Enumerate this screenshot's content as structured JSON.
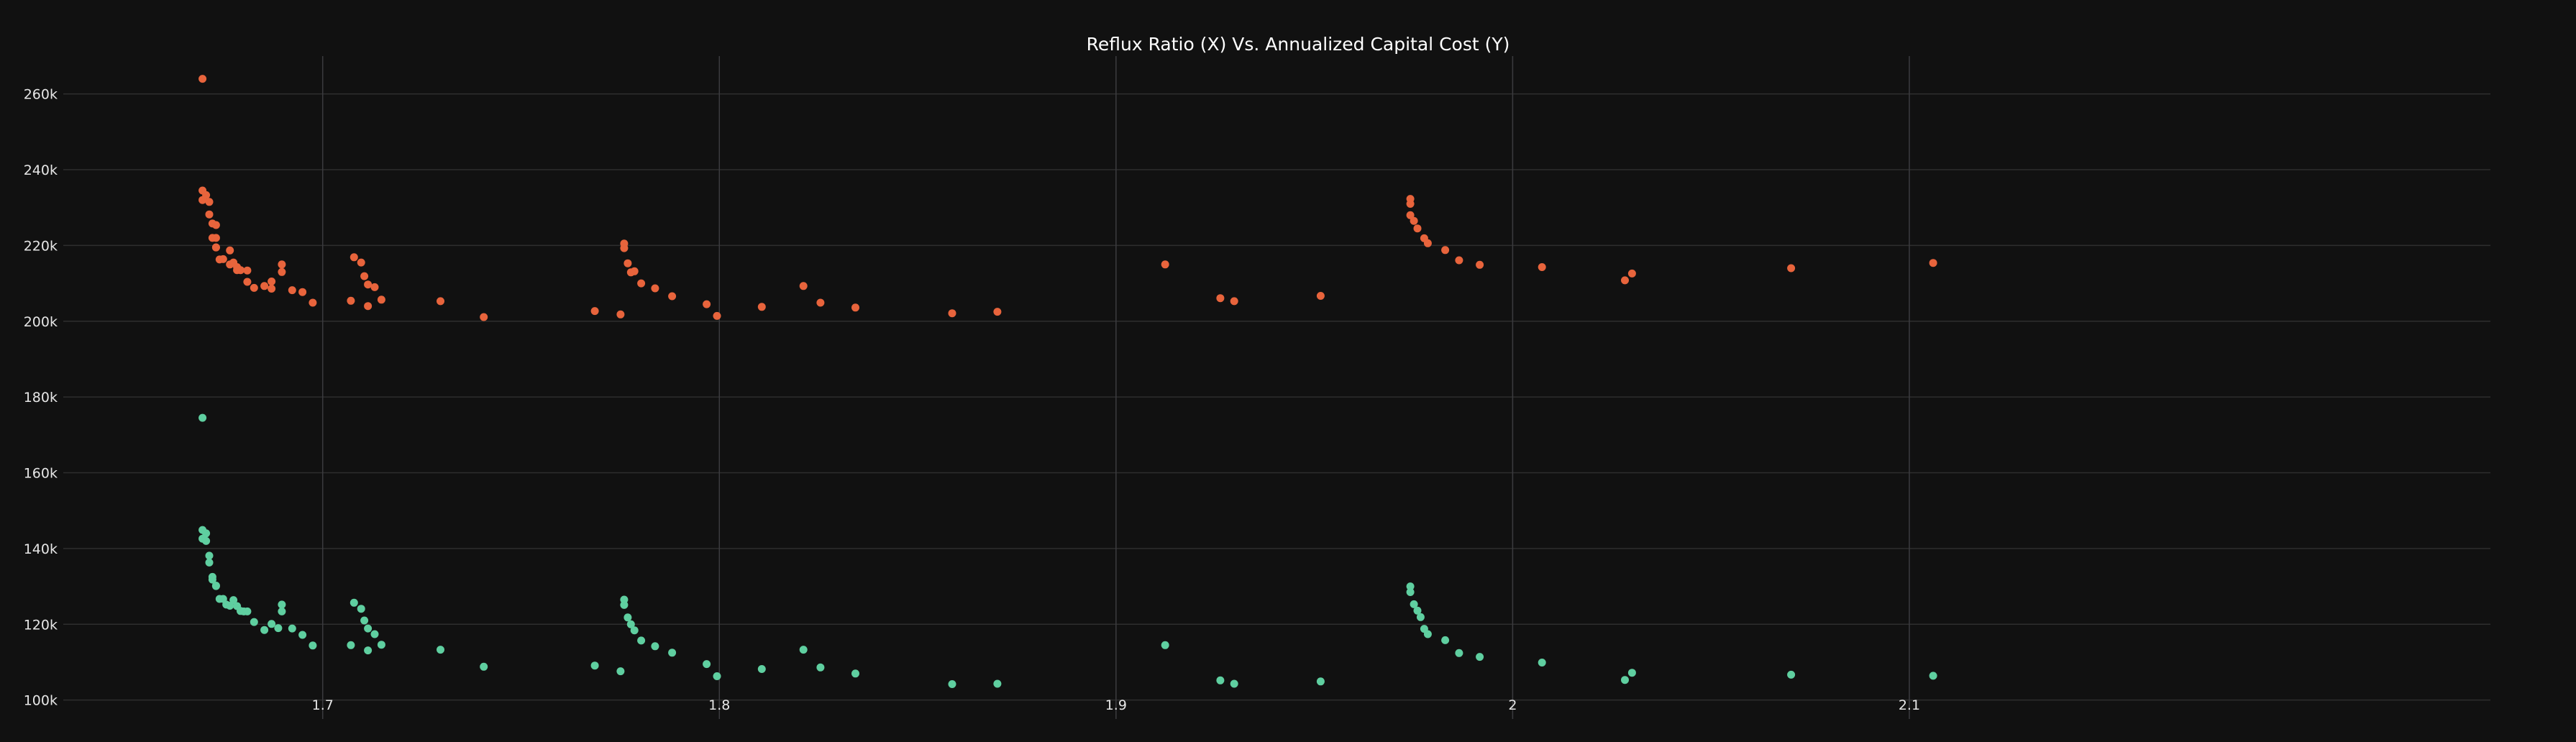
{
  "chart_data": {
    "type": "scatter",
    "title": "Reflux Ratio (X) Vs. Annualized Capital Cost (Y)",
    "xlabel": "",
    "ylabel": "",
    "xlim": [
      1.6346,
      2.2465
    ],
    "ylim": [
      95000,
      270000
    ],
    "x_ticks": [
      1.7,
      1.8,
      1.9,
      2.0,
      2.1
    ],
    "x_tick_labels": [
      "1.7",
      "1.8",
      "1.9",
      "2",
      "2.1"
    ],
    "y_ticks": [
      100000,
      120000,
      140000,
      160000,
      180000,
      200000,
      220000,
      240000,
      260000
    ],
    "y_tick_labels": [
      "100k",
      "120k",
      "140k",
      "160k",
      "180k",
      "200k",
      "220k",
      "240k",
      "260k"
    ],
    "grid": true,
    "legend": "none",
    "series": [
      {
        "color": "#e8643c",
        "x": [
          1.6697,
          1.6697,
          1.6706,
          1.6697,
          1.6714,
          1.6714,
          1.6722,
          1.6731,
          1.6722,
          1.6731,
          1.6731,
          1.6731,
          1.674,
          1.6749,
          1.6766,
          1.6766,
          1.6775,
          1.6784,
          1.6793,
          1.6784,
          1.681,
          1.681,
          1.6827,
          1.6853,
          1.6871,
          1.6871,
          1.6897,
          1.6897,
          1.6923,
          1.6949,
          1.6975,
          1.7071,
          1.7079,
          1.7097,
          1.7105,
          1.7114,
          1.7114,
          1.7131,
          1.7148,
          1.7297,
          1.7406,
          1.7686,
          1.7751,
          1.776,
          1.776,
          1.7769,
          1.7777,
          1.7786,
          1.7803,
          1.7838,
          1.7881,
          1.7968,
          1.7994,
          1.8107,
          1.8212,
          1.8255,
          1.8343,
          1.8587,
          1.8701,
          1.9124,
          1.9263,
          1.9298,
          1.9516,
          1.9742,
          1.9742,
          1.9742,
          1.9751,
          1.976,
          1.9777,
          1.9786,
          1.983,
          1.9865,
          1.9917,
          2.0074,
          2.0283,
          2.0301,
          2.0702,
          2.106
        ],
        "y": [
          264000,
          234500,
          233300,
          232000,
          231500,
          228200,
          225800,
          225400,
          222000,
          222000,
          219500,
          219500,
          216300,
          216400,
          218700,
          215000,
          215500,
          214300,
          213500,
          213500,
          213400,
          210400,
          208800,
          209300,
          210500,
          208600,
          215000,
          213000,
          208200,
          207700,
          204900,
          205400,
          216900,
          215500,
          211900,
          209700,
          204000,
          209000,
          205700,
          205300,
          201100,
          202700,
          201800,
          220500,
          219300,
          215300,
          212900,
          213200,
          210000,
          208700,
          206600,
          204500,
          201400,
          203800,
          209300,
          204900,
          203600,
          202100,
          202500,
          215000,
          206100,
          205300,
          206700,
          232300,
          231000,
          228000,
          226500,
          224500,
          221900,
          220600,
          218800,
          216100,
          214900,
          214300,
          210800,
          212600,
          214000,
          215400
        ]
      },
      {
        "color": "#5fcfa0",
        "x": [
          1.6697,
          1.6697,
          1.6697,
          1.6706,
          1.6706,
          1.6714,
          1.6714,
          1.6722,
          1.6722,
          1.6731,
          1.6731,
          1.674,
          1.6749,
          1.6757,
          1.6766,
          1.6775,
          1.6784,
          1.6793,
          1.6801,
          1.681,
          1.6827,
          1.6853,
          1.6871,
          1.6888,
          1.6897,
          1.6897,
          1.6923,
          1.6949,
          1.6975,
          1.7071,
          1.7079,
          1.7097,
          1.7105,
          1.7114,
          1.7114,
          1.7131,
          1.7148,
          1.7297,
          1.7406,
          1.7686,
          1.7751,
          1.776,
          1.776,
          1.7769,
          1.7777,
          1.7786,
          1.7803,
          1.7838,
          1.7881,
          1.7968,
          1.7994,
          1.8107,
          1.8212,
          1.8255,
          1.8343,
          1.8587,
          1.8701,
          1.9124,
          1.9263,
          1.9298,
          1.9516,
          1.9742,
          1.9742,
          1.9751,
          1.976,
          1.9768,
          1.9777,
          1.9786,
          1.983,
          1.9865,
          1.9917,
          2.0074,
          2.0283,
          2.0301,
          2.0702,
          2.106
        ],
        "y": [
          174500,
          144900,
          142600,
          144000,
          142000,
          138100,
          136300,
          132500,
          131800,
          130200,
          130100,
          126700,
          126700,
          125200,
          124900,
          126400,
          124800,
          123500,
          123400,
          123400,
          120600,
          118500,
          120100,
          119000,
          125200,
          123400,
          118900,
          117200,
          114400,
          114500,
          125700,
          124100,
          121000,
          118900,
          113100,
          117400,
          114600,
          113300,
          108800,
          109100,
          107600,
          126500,
          125100,
          121800,
          120000,
          118400,
          115700,
          114200,
          112500,
          109500,
          106300,
          108200,
          113300,
          108600,
          107000,
          104200,
          104300,
          114500,
          105200,
          104300,
          104900,
          130000,
          128500,
          125300,
          123600,
          121900,
          118800,
          117400,
          115800,
          112400,
          111400,
          109900,
          105300,
          107200,
          106700,
          106400
        ]
      }
    ]
  }
}
